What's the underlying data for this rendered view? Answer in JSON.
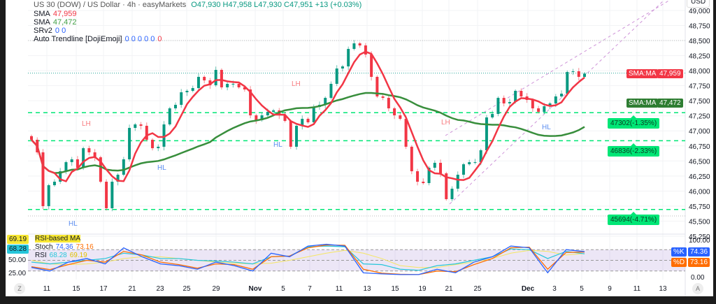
{
  "legend": {
    "title": "US 30 (DOW) / US Dollar · 4h · easyMarkets",
    "ohlc": "O47,930 H47,958 L47,930 C47,951 +13 (+0.03%)",
    "indicators": [
      {
        "name": "SMA",
        "values": "47,959",
        "color": "#f23645"
      },
      {
        "name": "SMA",
        "values": "47,472",
        "color": "#43a047"
      },
      {
        "name": "SRv2",
        "values": "0 0",
        "color": "#2962ff"
      },
      {
        "name": "Auto Trendline [DojiEmoji]",
        "values": "0 0 0 0 0",
        "extra": "0",
        "color": "#2962ff"
      }
    ]
  },
  "currency": "USD",
  "price_tags": [
    {
      "label": "SMA:MA",
      "value": "47,959",
      "color": "#f23645"
    },
    {
      "label": "SMA:MA",
      "value": "47,472",
      "color": "#2e7d32"
    }
  ],
  "levels": [
    {
      "price": 47302,
      "label": "47302(-1.35%)"
    },
    {
      "price": 46836,
      "label": "46836(-2.33%)"
    },
    {
      "price": 45694,
      "label": "45694(-4.71%)"
    }
  ],
  "swing_labels": [
    {
      "text": "LH",
      "color": "#f77c80"
    },
    {
      "text": "HL",
      "color": "#5b8def"
    },
    {
      "text": "HL",
      "color": "#5b8def"
    },
    {
      "text": "HL",
      "color": "#5b8def"
    },
    {
      "text": "LH",
      "color": "#f77c80"
    },
    {
      "text": "LH",
      "color": "#f77c80"
    },
    {
      "text": "HL",
      "color": "#5b8def"
    }
  ],
  "oscillator": {
    "rsi_ma_badge": "69.19",
    "rsi_badge": "68.28",
    "rsi_ma_label": "RSI-based MA",
    "stoch_label": "Stoch",
    "stoch_k": "74.36",
    "stoch_d": "73.16",
    "rsi_label": "RSI",
    "rsi_value": "68.28",
    "rsi_ma_value": "69.19",
    "k_tag": "%K",
    "d_tag": "%D",
    "left_axis": [
      "50.00",
      "25.00"
    ],
    "right_axis": [
      "100.00",
      "0.00"
    ],
    "colors": {
      "k": "#2962ff",
      "d": "#ff6d00",
      "rsi": "#26c6da",
      "rsi_ma": "#f5e663"
    }
  },
  "buttons": {
    "zoom_left": "Z",
    "auto_scale": "A"
  },
  "chart_data": {
    "type": "candlestick",
    "symbol": "US 30 (DOW) / US Dollar",
    "interval": "4h",
    "ylim": [
      45250,
      49000
    ],
    "y_ticks": [
      "49,000",
      "48,750",
      "48,500",
      "48,250",
      "48,000",
      "47,750",
      "47,500",
      "47,250",
      "47,000",
      "46,750",
      "46,500",
      "46,250",
      "46,000",
      "45,750",
      "45,500",
      "45,250"
    ],
    "x_ticks": [
      "11",
      "15",
      "17",
      "21",
      "23",
      "25",
      "29",
      "Nov",
      "5",
      "7",
      "11",
      "13",
      "15",
      "19",
      "21",
      "25",
      "Dec",
      "3",
      "5",
      "9",
      "11",
      "13"
    ],
    "closes": [
      46852,
      46643,
      45749,
      46097,
      46155,
      46329,
      46480,
      46527,
      46387,
      46712,
      46643,
      46561,
      46155,
      45714,
      46155,
      46271,
      46527,
      47049,
      47107,
      47084,
      46852,
      46712,
      46736,
      47107,
      47374,
      47432,
      47641,
      47665,
      47711,
      47897,
      47839,
      47758,
      48013,
      47723,
      47781,
      47781,
      47723,
      47688,
      47258,
      47177,
      47258,
      47316,
      47340,
      47258,
      47165,
      46736,
      47084,
      47200,
      47142,
      47398,
      47432,
      47548,
      47781,
      48036,
      48071,
      48361,
      48454,
      48419,
      48268,
      47897,
      47572,
      47548,
      47374,
      47258,
      47200,
      46736,
      46329,
      46155,
      46132,
      46387,
      46469,
      46294,
      45865,
      46039,
      46271,
      46445,
      46480,
      46480,
      46678,
      47223,
      47281,
      47548,
      47456,
      47479,
      47665,
      47572,
      47514,
      47374,
      47316,
      47409,
      47456,
      47572,
      47618,
      47978,
      47990,
      47897,
      47951
    ],
    "sma_fast": {
      "last": 47959,
      "color": "#f23645"
    },
    "sma_slow": {
      "last": 47472,
      "color": "#388e3c"
    },
    "oscillator_series": {
      "stoch_k": [
        30,
        20,
        45,
        55,
        40,
        85,
        60,
        40,
        35,
        25,
        45,
        35,
        20,
        70,
        60,
        90,
        95,
        90,
        15,
        12,
        10,
        10,
        25,
        15,
        45,
        60,
        90,
        85,
        15,
        80,
        74.36
      ],
      "stoch_d": [
        32,
        24,
        38,
        50,
        45,
        75,
        65,
        45,
        38,
        28,
        40,
        38,
        25,
        60,
        62,
        85,
        93,
        92,
        25,
        14,
        11,
        10,
        20,
        18,
        38,
        55,
        85,
        87,
        25,
        72,
        73.16
      ],
      "rsi": [
        45,
        40,
        45,
        50,
        55,
        70,
        65,
        55,
        55,
        50,
        48,
        45,
        40,
        60,
        62,
        88,
        90,
        88,
        40,
        38,
        25,
        22,
        35,
        40,
        50,
        60,
        82,
        80,
        55,
        75,
        68.28
      ],
      "rsi_ma": [
        50,
        40,
        38,
        40,
        45,
        55,
        60,
        60,
        55,
        50,
        45,
        42,
        40,
        42,
        50,
        60,
        70,
        78,
        70,
        55,
        35,
        30,
        30,
        38,
        45,
        55,
        70,
        78,
        75,
        65,
        69.19
      ]
    }
  }
}
